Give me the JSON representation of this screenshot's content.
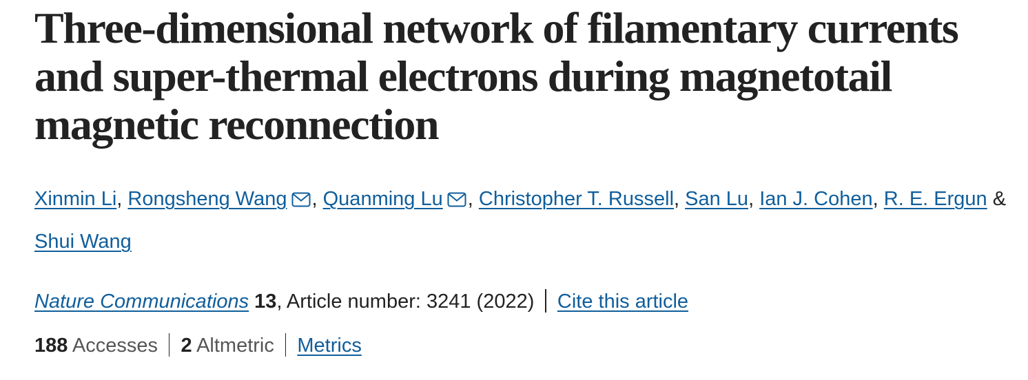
{
  "title": "Three-dimensional network of filamentary currents and super-thermal electrons during magnetotail magnetic reconnection",
  "authors": [
    {
      "name": "Xinmin Li",
      "email": false
    },
    {
      "name": "Rongsheng Wang",
      "email": true
    },
    {
      "name": "Quanming Lu",
      "email": true
    },
    {
      "name": "Christopher T. Russell",
      "email": false
    },
    {
      "name": "San Lu",
      "email": false
    },
    {
      "name": "Ian J. Cohen",
      "email": false
    },
    {
      "name": "R. E. Ergun",
      "email": false
    },
    {
      "name": "Shui Wang",
      "email": false
    }
  ],
  "author_separator": ",",
  "author_last_separator": "&",
  "citation": {
    "journal": "Nature Communications",
    "volume": "13",
    "article_info": ", Article number: 3241 (2022)",
    "cite_label": "Cite this article"
  },
  "metrics": {
    "accesses_count": "188",
    "accesses_label": "Accesses",
    "altmetric_count": "2",
    "altmetric_label": "Altmetric",
    "metrics_link": "Metrics"
  },
  "colors": {
    "link": "#0f5e9c",
    "text": "#222222",
    "muted": "#555555"
  },
  "icons": {
    "email": "envelope-icon"
  }
}
